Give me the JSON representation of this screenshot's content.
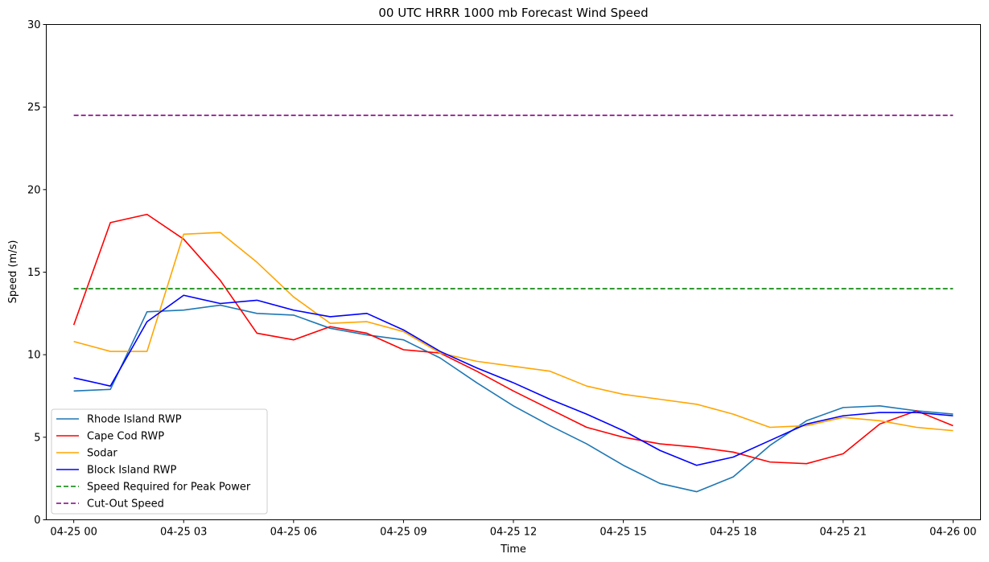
{
  "chart_data": {
    "type": "line",
    "title": "00 UTC HRRR 1000 mb Forecast Wind Speed",
    "xlabel": "Time",
    "ylabel": "Speed (m/s)",
    "ylim": [
      0,
      30
    ],
    "xlim": [
      -0.75,
      24.75
    ],
    "yticks": [
      0,
      5,
      10,
      15,
      20,
      25,
      30
    ],
    "xticks": [
      {
        "at": 0,
        "label": "04-25 00"
      },
      {
        "at": 3,
        "label": "04-25 03"
      },
      {
        "at": 6,
        "label": "04-25 06"
      },
      {
        "at": 9,
        "label": "04-25 09"
      },
      {
        "at": 12,
        "label": "04-25 12"
      },
      {
        "at": 15,
        "label": "04-25 15"
      },
      {
        "at": 18,
        "label": "04-25 18"
      },
      {
        "at": 21,
        "label": "04-25 21"
      },
      {
        "at": 24,
        "label": "04-26 00"
      }
    ],
    "x": [
      "04-25 00",
      "04-25 01",
      "04-25 02",
      "04-25 03",
      "04-25 04",
      "04-25 05",
      "04-25 06",
      "04-25 07",
      "04-25 08",
      "04-25 09",
      "04-25 10",
      "04-25 11",
      "04-25 12",
      "04-25 13",
      "04-25 14",
      "04-25 15",
      "04-25 16",
      "04-25 17",
      "04-25 18",
      "04-25 19",
      "04-25 20",
      "04-25 21",
      "04-25 22",
      "04-25 23",
      "04-26 00"
    ],
    "grid": false,
    "legend_position": "lower-left",
    "series": [
      {
        "name": "Rhode Island RWP",
        "color": "#1f77b4",
        "style": "solid",
        "values": [
          7.8,
          7.9,
          12.6,
          12.7,
          13.0,
          12.5,
          12.4,
          11.6,
          11.2,
          10.9,
          9.8,
          8.3,
          6.9,
          5.7,
          4.6,
          3.3,
          2.2,
          1.7,
          2.6,
          4.5,
          6.0,
          6.8,
          6.9,
          6.6,
          6.4
        ]
      },
      {
        "name": "Cape Cod RWP",
        "color": "#ff0000",
        "style": "solid",
        "values": [
          11.8,
          18.0,
          18.5,
          17.0,
          14.5,
          11.3,
          10.9,
          11.7,
          11.3,
          10.3,
          10.1,
          9.0,
          7.8,
          6.7,
          5.6,
          5.0,
          4.6,
          4.4,
          4.1,
          3.5,
          3.4,
          4.0,
          5.8,
          6.6,
          5.7
        ]
      },
      {
        "name": "Sodar",
        "color": "#ffa500",
        "style": "solid",
        "values": [
          10.8,
          10.2,
          10.2,
          17.3,
          17.4,
          15.6,
          13.5,
          11.9,
          12.0,
          11.4,
          10.1,
          9.6,
          9.3,
          9.0,
          8.1,
          7.6,
          7.3,
          7.0,
          6.4,
          5.6,
          5.7,
          6.2,
          6.0,
          5.6,
          5.4
        ]
      },
      {
        "name": "Block Island RWP",
        "color": "#0000ff",
        "style": "solid",
        "values": [
          8.6,
          8.1,
          12.0,
          13.6,
          13.1,
          13.3,
          12.7,
          12.3,
          12.5,
          11.5,
          10.2,
          9.2,
          8.3,
          7.3,
          6.4,
          5.4,
          4.2,
          3.3,
          3.8,
          4.8,
          5.8,
          6.3,
          6.5,
          6.5,
          6.3
        ]
      },
      {
        "name": "Speed Required for Peak Power",
        "color": "#008000",
        "style": "dashed",
        "values": [
          14.0,
          14.0,
          14.0,
          14.0,
          14.0,
          14.0,
          14.0,
          14.0,
          14.0,
          14.0,
          14.0,
          14.0,
          14.0,
          14.0,
          14.0,
          14.0,
          14.0,
          14.0,
          14.0,
          14.0,
          14.0,
          14.0,
          14.0,
          14.0,
          14.0
        ]
      },
      {
        "name": "Cut-Out Speed",
        "color": "#800080",
        "style": "dashed",
        "values": [
          24.5,
          24.5,
          24.5,
          24.5,
          24.5,
          24.5,
          24.5,
          24.5,
          24.5,
          24.5,
          24.5,
          24.5,
          24.5,
          24.5,
          24.5,
          24.5,
          24.5,
          24.5,
          24.5,
          24.5,
          24.5,
          24.5,
          24.5,
          24.5,
          24.5
        ]
      }
    ]
  }
}
